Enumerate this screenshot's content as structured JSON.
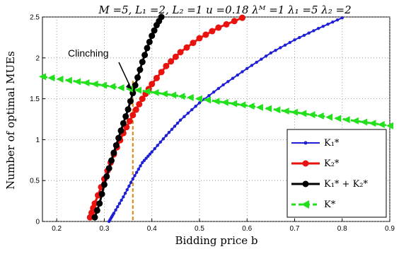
{
  "chart_data": {
    "type": "line",
    "title": "M =5, L₁ =2, L₂ =1  u =0.18  λᴹ =1  λ₁ =5  λ₂ =2",
    "xlabel": "Bidding price b",
    "ylabel": "Number of optimal MUEs",
    "xlim": [
      0.17,
      0.9
    ],
    "ylim": [
      0,
      2.5
    ],
    "xticks": [
      "0.2",
      "0.3",
      "0.4",
      "0.5",
      "0.6",
      "0.7",
      "0.8",
      "0.9"
    ],
    "yticks": [
      "0",
      "0.5",
      "1",
      "1.5",
      "2",
      "2.5"
    ],
    "grid": true,
    "legend_position": "bottom-right",
    "annotation": {
      "text": "Clinching",
      "x": 0.36,
      "y": 1.6
    },
    "vline": {
      "x": 0.36,
      "color": "#d98c1a"
    },
    "series": [
      {
        "name": "K₁* ",
        "color": "#1f1fd6",
        "x": [
          0.31,
          0.32,
          0.34,
          0.36,
          0.38,
          0.4,
          0.43,
          0.46,
          0.5,
          0.55,
          0.6,
          0.65,
          0.7,
          0.75,
          0.8
        ],
        "y": [
          0.0,
          0.1,
          0.3,
          0.52,
          0.72,
          0.85,
          1.05,
          1.24,
          1.45,
          1.67,
          1.87,
          2.06,
          2.22,
          2.36,
          2.49
        ]
      },
      {
        "name": "K₂*",
        "color": "#e8120f",
        "x": [
          0.27,
          0.28,
          0.3,
          0.32,
          0.34,
          0.36,
          0.38,
          0.4,
          0.43,
          0.46,
          0.5,
          0.54,
          0.59
        ],
        "y": [
          0.05,
          0.22,
          0.52,
          0.82,
          1.08,
          1.3,
          1.5,
          1.68,
          1.9,
          2.07,
          2.24,
          2.37,
          2.49
        ]
      },
      {
        "name": "K₁* + K₂*",
        "color": "#000000",
        "x": [
          0.28,
          0.29,
          0.3,
          0.31,
          0.32,
          0.33,
          0.34,
          0.35,
          0.36,
          0.37,
          0.38,
          0.39,
          0.4,
          0.41,
          0.42
        ],
        "y": [
          0.05,
          0.22,
          0.45,
          0.65,
          0.84,
          1.02,
          1.2,
          1.37,
          1.57,
          1.76,
          1.95,
          2.12,
          2.27,
          2.4,
          2.5
        ]
      },
      {
        "name": "K*",
        "color": "#22e01c",
        "x": [
          0.17,
          0.9
        ],
        "y": [
          1.77,
          1.17
        ]
      }
    ]
  }
}
